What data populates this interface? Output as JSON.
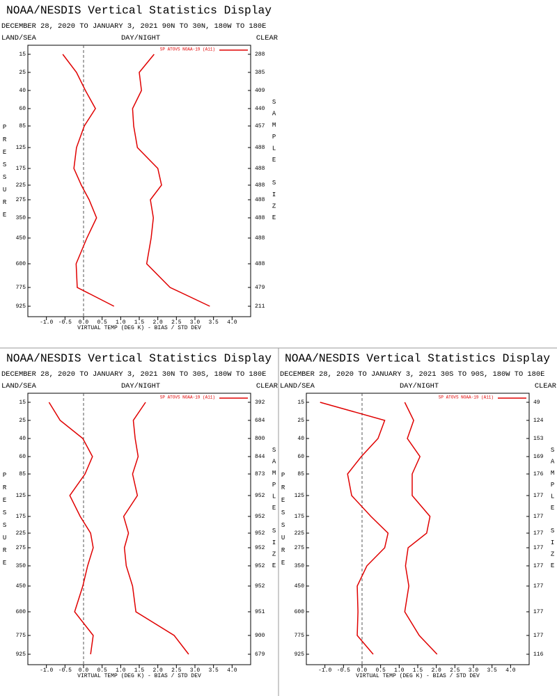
{
  "chart_data": [
    {
      "type": "line",
      "title": "NOAA/NESDIS Vertical Statistics Display",
      "subtitle": "DECEMBER 28, 2020 TO JANUARY 3, 2021 90N TO 30N, 180W TO 180E",
      "left_label": "LAND/SEA",
      "center_label": "DAY/NIGHT",
      "right_label": "CLEAR",
      "y_label": "PRESSURE",
      "y2_label": "SAMPLE SIZE",
      "x_label": "VIRTUAL TEMP (DEG K) - BIAS / STD DEV",
      "categories": [
        15,
        25,
        40,
        60,
        85,
        125,
        175,
        225,
        275,
        350,
        450,
        600,
        775,
        925
      ],
      "sample_size": [
        288,
        385,
        409,
        440,
        457,
        488,
        488,
        488,
        488,
        488,
        488,
        488,
        479,
        211
      ],
      "series": [
        {
          "name": "SP ATOVS NOAA-19 (A11)",
          "color": "#e00000",
          "bias": [
            -0.56,
            -0.19,
            0.05,
            0.32,
            0.02,
            -0.19,
            -0.26,
            -0.06,
            0.15,
            0.35,
            0.09,
            -0.2,
            -0.17,
            0.82
          ],
          "std_dev": [
            1.9,
            1.5,
            1.56,
            1.32,
            1.35,
            1.45,
            2.0,
            2.1,
            1.8,
            1.88,
            1.82,
            1.7,
            2.33,
            3.4
          ]
        }
      ],
      "xlim": [
        -1.5,
        4.5
      ],
      "xticks": [
        {
          "value": -1,
          "label": "-1.0"
        },
        -0.5,
        {
          "value": 0,
          "label": "0.0"
        },
        0.5,
        {
          "value": 1,
          "label": "1.0"
        },
        1.5,
        {
          "value": 2,
          "label": "2.0"
        },
        2.5,
        {
          "value": 3,
          "label": "3.0"
        },
        3.5,
        {
          "value": 4,
          "label": "4.0"
        }
      ],
      "zero_line": 0
    },
    {
      "type": "line",
      "title": "NOAA/NESDIS Vertical Statistics Display",
      "subtitle": "DECEMBER 28, 2020 TO JANUARY 3, 2021 30N TO 30S, 180W TO 180E",
      "left_label": "LAND/SEA",
      "center_label": "DAY/NIGHT",
      "right_label": "CLEAR",
      "y_label": "PRESSURE",
      "y2_label": "SAMPLE SIZE",
      "x_label": "VIRTUAL TEMP (DEG K) - BIAS / STD DEV",
      "categories": [
        15,
        25,
        40,
        60,
        85,
        125,
        175,
        225,
        275,
        350,
        450,
        600,
        775,
        925
      ],
      "sample_size": [
        392,
        684,
        800,
        844,
        873,
        952,
        952,
        952,
        952,
        952,
        952,
        951,
        900,
        679
      ],
      "series": [
        {
          "name": "SP ATOVS NOAA-19 (A11)",
          "color": "#e00000",
          "bias": [
            -0.93,
            -0.63,
            -0.02,
            0.24,
            0.04,
            -0.37,
            -0.09,
            0.19,
            0.26,
            0.11,
            -0.02,
            -0.24,
            0.26,
            0.19
          ],
          "std_dev": [
            1.67,
            1.34,
            1.39,
            1.47,
            1.32,
            1.45,
            1.08,
            1.21,
            1.1,
            1.15,
            1.32,
            1.41,
            2.44,
            2.83
          ]
        }
      ],
      "xlim": [
        -1.5,
        4.5
      ],
      "xticks": [
        {
          "value": -1,
          "label": "-1.0"
        },
        -0.5,
        {
          "value": 0,
          "label": "0.0"
        },
        0.5,
        {
          "value": 1,
          "label": "1.0"
        },
        1.5,
        {
          "value": 2,
          "label": "2.0"
        },
        2.5,
        {
          "value": 3,
          "label": "3.0"
        },
        3.5,
        {
          "value": 4,
          "label": "4.0"
        }
      ],
      "zero_line": 0
    },
    {
      "type": "line",
      "title": "NOAA/NESDIS Vertical Statistics Display",
      "subtitle": "DECEMBER 28, 2020 TO JANUARY 3, 2021 30S TO 90S, 180W TO 180E",
      "left_label": "LAND/SEA",
      "center_label": "DAY/NIGHT",
      "right_label": "CLEAR",
      "y_label": "PRESSURE",
      "y2_label": "SAMPLE SIZE",
      "x_label": "VIRTUAL TEMP (DEG K) - BIAS / STD DEV",
      "categories": [
        15,
        25,
        40,
        60,
        85,
        125,
        175,
        225,
        275,
        350,
        450,
        600,
        775,
        925
      ],
      "sample_size": [
        49,
        124,
        153,
        169,
        176,
        177,
        177,
        177,
        177,
        177,
        177,
        177,
        177,
        116
      ],
      "series": [
        {
          "name": "SP ATOVS NOAA-19 (A11)",
          "color": "#e00000",
          "bias": [
            -1.13,
            0.61,
            0.43,
            -0.02,
            -0.39,
            -0.28,
            0.24,
            0.7,
            0.61,
            0.13,
            -0.13,
            -0.11,
            -0.13,
            0.3
          ],
          "std_dev": [
            1.15,
            1.39,
            1.22,
            1.56,
            1.35,
            1.35,
            1.83,
            1.74,
            1.24,
            1.17,
            1.26,
            1.15,
            1.54,
            2.02
          ]
        }
      ],
      "xlim": [
        -1.5,
        4.5
      ],
      "xticks": [
        {
          "value": -1,
          "label": "-1.0"
        },
        -0.5,
        {
          "value": 0,
          "label": "0.0"
        },
        0.5,
        {
          "value": 1,
          "label": "1.0"
        },
        1.5,
        {
          "value": 2,
          "label": "2.0"
        },
        2.5,
        {
          "value": 3,
          "label": "3.0"
        },
        3.5,
        {
          "value": 4,
          "label": "4.0"
        }
      ],
      "zero_line": 0
    }
  ]
}
